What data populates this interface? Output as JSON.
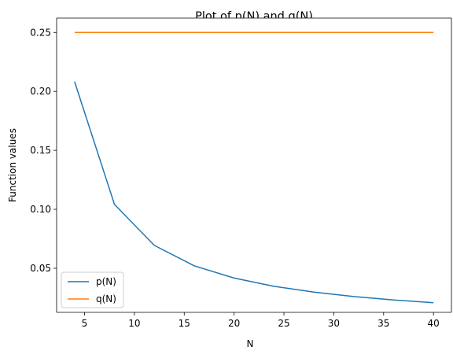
{
  "chart_data": {
    "type": "line",
    "title": "Plot of p(N) and q(N)",
    "xlabel": "N",
    "ylabel": "Function values",
    "xlim": [
      2.2,
      41.8
    ],
    "ylim": [
      0.0126,
      0.2622
    ],
    "xticks": [
      5,
      10,
      15,
      20,
      25,
      30,
      35,
      40
    ],
    "yticks": [
      0.05,
      0.1,
      0.15,
      0.2,
      0.25
    ],
    "xtick_labels": [
      "5",
      "10",
      "15",
      "20",
      "25",
      "30",
      "35",
      "40"
    ],
    "ytick_labels": [
      "0.05",
      "0.10",
      "0.15",
      "0.20",
      "0.25"
    ],
    "grid": false,
    "legend_position": "lower-left",
    "series": [
      {
        "name": "p(N)",
        "color": "#1f77b4",
        "x": [
          4,
          8,
          12,
          16,
          20,
          24,
          28,
          32,
          36,
          40
        ],
        "y": [
          0.2083,
          0.1042,
          0.0694,
          0.0521,
          0.0417,
          0.0347,
          0.0298,
          0.026,
          0.0231,
          0.0208
        ]
      },
      {
        "name": "q(N)",
        "color": "#ff7f0e",
        "x": [
          4,
          8,
          12,
          16,
          20,
          24,
          28,
          32,
          36,
          40
        ],
        "y": [
          0.25,
          0.25,
          0.25,
          0.25,
          0.25,
          0.25,
          0.25,
          0.25,
          0.25,
          0.25
        ]
      }
    ]
  }
}
